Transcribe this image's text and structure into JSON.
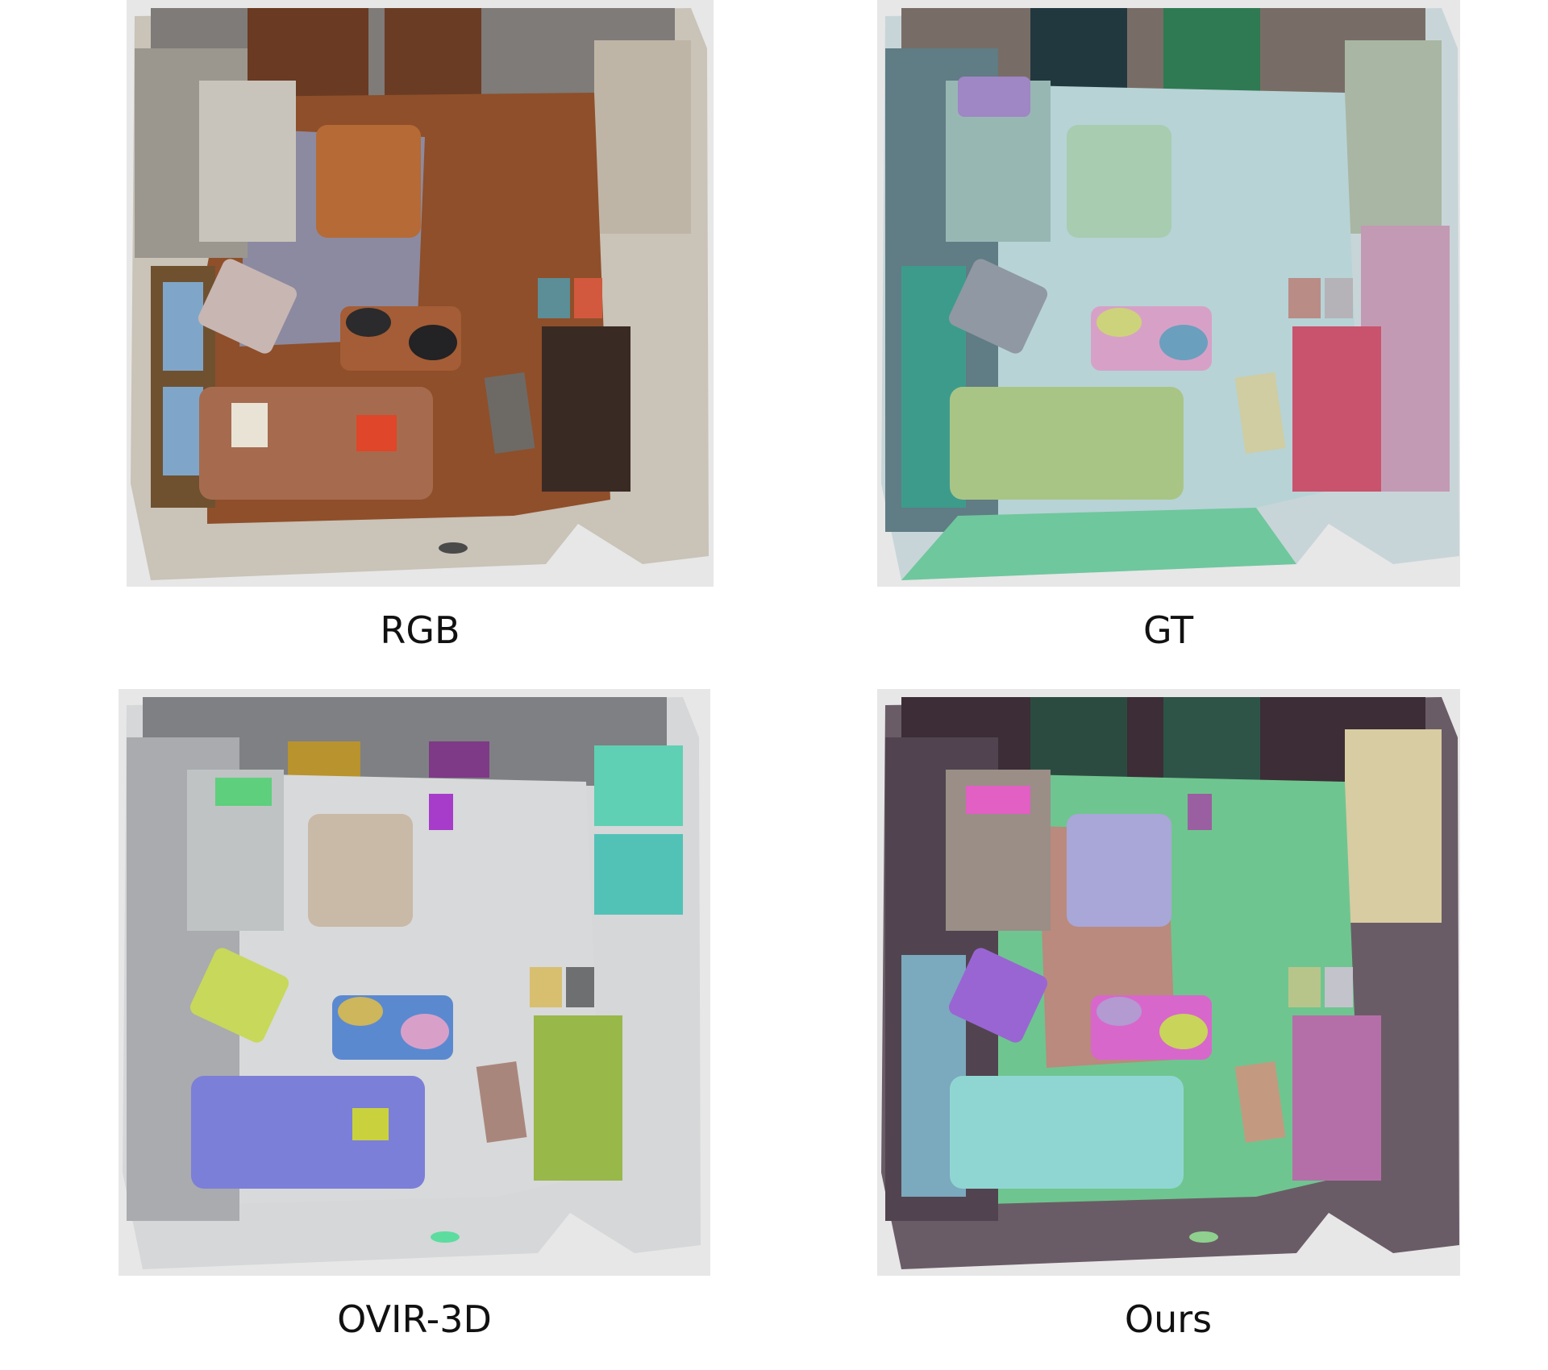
{
  "panels": [
    {
      "caption": "RGB"
    },
    {
      "caption": "GT"
    },
    {
      "caption": "OVIR-3D"
    },
    {
      "caption": "Ours"
    }
  ],
  "colors": {
    "background": "#ffffff",
    "canvas": "#e7e7e7",
    "rgb_floor": "#9a5a2e",
    "rgb_wall": "#8a8f93",
    "gt_floor": "#b7d3d6",
    "ovir_floor": "#d5d7d8",
    "ours_floor": "#6fc58f"
  }
}
